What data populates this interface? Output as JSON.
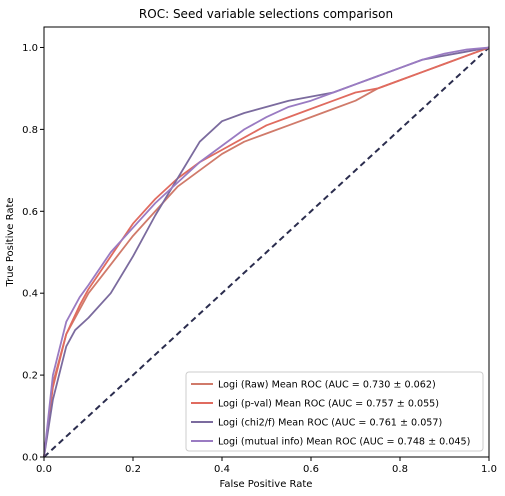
{
  "chart_data": {
    "type": "line",
    "title": "ROC: Seed variable selections comparison",
    "xlabel": "False Positive Rate",
    "ylabel": "True Positive Rate",
    "xlim": [
      0.0,
      1.0
    ],
    "ylim": [
      0.0,
      1.05
    ],
    "xticks": [
      "0.0",
      "0.2",
      "0.4",
      "0.6",
      "0.8",
      "1.0"
    ],
    "yticks": [
      "0.0",
      "0.2",
      "0.4",
      "0.6",
      "0.8",
      "1.0"
    ],
    "grid": false,
    "legend_position": "lower-right",
    "series": [
      {
        "name": "Logi (Raw) Mean ROC (AUC = 0.730 ± 0.062)",
        "color": "#d07a6a",
        "x": [
          0.0,
          0.02,
          0.05,
          0.08,
          0.1,
          0.15,
          0.2,
          0.25,
          0.3,
          0.35,
          0.4,
          0.45,
          0.5,
          0.55,
          0.6,
          0.65,
          0.7,
          0.75,
          0.8,
          0.85,
          0.9,
          0.95,
          1.0
        ],
        "y": [
          0.0,
          0.18,
          0.3,
          0.36,
          0.4,
          0.47,
          0.54,
          0.6,
          0.66,
          0.7,
          0.74,
          0.77,
          0.79,
          0.81,
          0.83,
          0.85,
          0.87,
          0.9,
          0.92,
          0.94,
          0.96,
          0.98,
          1.0
        ]
      },
      {
        "name": "Logi (p-val) Mean ROC (AUC = 0.757 ± 0.055)",
        "color": "#e06b5f",
        "x": [
          0.0,
          0.02,
          0.05,
          0.08,
          0.1,
          0.15,
          0.2,
          0.25,
          0.3,
          0.35,
          0.4,
          0.45,
          0.5,
          0.55,
          0.6,
          0.65,
          0.7,
          0.75,
          0.8,
          0.85,
          0.9,
          0.95,
          1.0
        ],
        "y": [
          0.0,
          0.17,
          0.3,
          0.37,
          0.41,
          0.49,
          0.57,
          0.63,
          0.68,
          0.72,
          0.75,
          0.78,
          0.81,
          0.83,
          0.85,
          0.87,
          0.89,
          0.9,
          0.92,
          0.94,
          0.96,
          0.98,
          1.0
        ]
      },
      {
        "name": "Logi (chi2/f) Mean ROC (AUC = 0.761 ± 0.057)",
        "color": "#7b6b9e",
        "x": [
          0.0,
          0.02,
          0.05,
          0.07,
          0.1,
          0.15,
          0.2,
          0.25,
          0.3,
          0.35,
          0.4,
          0.45,
          0.5,
          0.55,
          0.6,
          0.65,
          0.7,
          0.75,
          0.8,
          0.85,
          0.9,
          0.95,
          1.0
        ],
        "y": [
          0.0,
          0.14,
          0.27,
          0.31,
          0.34,
          0.4,
          0.49,
          0.59,
          0.68,
          0.77,
          0.82,
          0.84,
          0.855,
          0.87,
          0.88,
          0.89,
          0.91,
          0.93,
          0.95,
          0.97,
          0.98,
          0.99,
          1.0
        ]
      },
      {
        "name": "Logi (mutual info) Mean ROC (AUC = 0.748 ± 0.045)",
        "color": "#9a7bc2",
        "x": [
          0.0,
          0.02,
          0.05,
          0.08,
          0.1,
          0.15,
          0.2,
          0.25,
          0.3,
          0.35,
          0.4,
          0.45,
          0.5,
          0.55,
          0.6,
          0.65,
          0.7,
          0.75,
          0.8,
          0.85,
          0.9,
          0.95,
          1.0
        ],
        "y": [
          0.0,
          0.2,
          0.33,
          0.39,
          0.42,
          0.5,
          0.56,
          0.62,
          0.67,
          0.72,
          0.76,
          0.8,
          0.83,
          0.855,
          0.87,
          0.89,
          0.91,
          0.93,
          0.95,
          0.97,
          0.985,
          0.995,
          1.0
        ]
      }
    ],
    "reference_line": {
      "x": [
        0.0,
        1.0
      ],
      "y": [
        0.0,
        1.0
      ],
      "color": "#2b2d4e",
      "style": "dashed"
    }
  }
}
